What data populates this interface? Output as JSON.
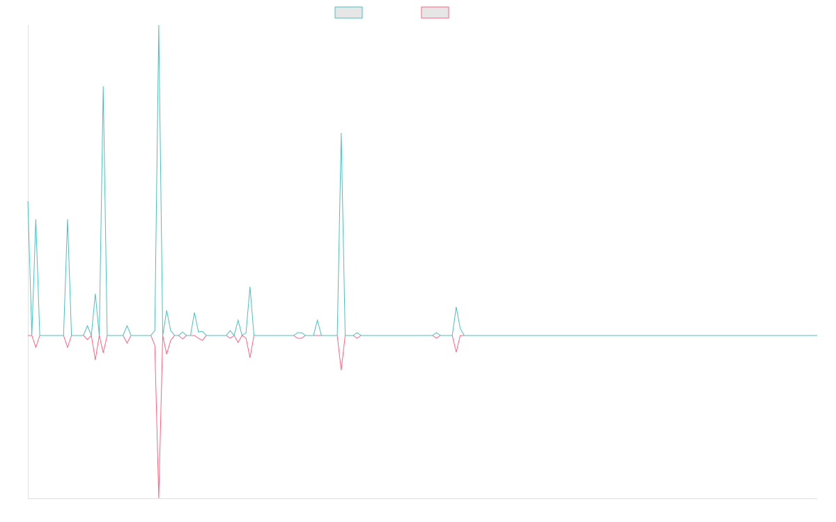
{
  "chart_data": {
    "type": "line",
    "categories": [
      null,
      null,
      null,
      null,
      null,
      null,
      null,
      null,
      null,
      null,
      null,
      null,
      null,
      null,
      null,
      null,
      null,
      null,
      null,
      null,
      null,
      null,
      null,
      null,
      null,
      null,
      null,
      null,
      null,
      null,
      null,
      null,
      null,
      null,
      null,
      null,
      null,
      null,
      null,
      null,
      null,
      null,
      null,
      null,
      null,
      null,
      null,
      null,
      null,
      null,
      null,
      null,
      null,
      null,
      null,
      null,
      null,
      null,
      null,
      null,
      null,
      null,
      null,
      null,
      null,
      null,
      null,
      null,
      null,
      null,
      null,
      null,
      null,
      null,
      null,
      null,
      null,
      null,
      null,
      null,
      null,
      null,
      null,
      null,
      null,
      null,
      null,
      null,
      null,
      null,
      null,
      null,
      null,
      null,
      null,
      null,
      null,
      null,
      null,
      null,
      null,
      null,
      null,
      null,
      null,
      null,
      null,
      null,
      null,
      null,
      null,
      null,
      null,
      null,
      null,
      null,
      null,
      null,
      null,
      null,
      null,
      null,
      null,
      null,
      null,
      null,
      null,
      null,
      null,
      null,
      null,
      null,
      null,
      null,
      null,
      null,
      null,
      null,
      null,
      null,
      null,
      null,
      null,
      null,
      null,
      null,
      null,
      null,
      null,
      null,
      null,
      null,
      null,
      null,
      null,
      null,
      null,
      null,
      null,
      null,
      null,
      null,
      null,
      null,
      null,
      null,
      null,
      null,
      null,
      null,
      null,
      null,
      null,
      null,
      null,
      null,
      null,
      null,
      null,
      null,
      null,
      null,
      null,
      null,
      null,
      null,
      null,
      null,
      null,
      null,
      null,
      null,
      null,
      null,
      null,
      null,
      null,
      null,
      null,
      null
    ],
    "series": [
      {
        "color": "#4bc0c0",
        "values": [
          193,
          0,
          167,
          0,
          0,
          0,
          0,
          0,
          0,
          0,
          167,
          0,
          0,
          0,
          0,
          14,
          0,
          60,
          0,
          358,
          0,
          0,
          0,
          0,
          0,
          14,
          0,
          0,
          0,
          0,
          0,
          0,
          7,
          446,
          0,
          36,
          7,
          0,
          0,
          5,
          0,
          0,
          33,
          5,
          6,
          0,
          0,
          0,
          0,
          0,
          0,
          7,
          0,
          22,
          0,
          4,
          70,
          0,
          0,
          0,
          0,
          0,
          0,
          0,
          0,
          0,
          0,
          0,
          4,
          4,
          0,
          0,
          0,
          22,
          0,
          0,
          0,
          0,
          0,
          291,
          0,
          0,
          0,
          4,
          0,
          0,
          0,
          0,
          0,
          0,
          0,
          0,
          0,
          0,
          0,
          0,
          0,
          0,
          0,
          0,
          0,
          0,
          0,
          4,
          0,
          0,
          0,
          0,
          41,
          10,
          0,
          0,
          0,
          0,
          0,
          0,
          0,
          0,
          0,
          0,
          0,
          0,
          0,
          0,
          0,
          0,
          0,
          0,
          0,
          0,
          0,
          0,
          0,
          0,
          0,
          0,
          0,
          0,
          0,
          0,
          0,
          0,
          0,
          0,
          0,
          0,
          0,
          0,
          0,
          0,
          0,
          0,
          0,
          0,
          0,
          0,
          0,
          0,
          0,
          0,
          0,
          0,
          0,
          0,
          0,
          0,
          0,
          0,
          0,
          0,
          0,
          0,
          0,
          0,
          0,
          0,
          0,
          0,
          0,
          0,
          0,
          0,
          0,
          0,
          0,
          0,
          0,
          0,
          0,
          0,
          0,
          0,
          0,
          0,
          0,
          0,
          0,
          0,
          0,
          0
        ]
      },
      {
        "color": "#ff6384",
        "values": [
          0,
          0,
          -17,
          0,
          0,
          0,
          0,
          0,
          0,
          0,
          -17,
          0,
          0,
          0,
          0,
          -6,
          0,
          -35,
          0,
          -25,
          0,
          0,
          0,
          0,
          0,
          -11,
          0,
          0,
          0,
          0,
          0,
          0,
          -14,
          -234,
          0,
          -27,
          -7,
          0,
          0,
          -5,
          0,
          0,
          0,
          -4,
          -7,
          0,
          0,
          0,
          0,
          0,
          0,
          -4,
          0,
          -10,
          0,
          -4,
          -32,
          0,
          0,
          0,
          0,
          0,
          0,
          0,
          0,
          0,
          0,
          0,
          -4,
          -4,
          0,
          0,
          0,
          0,
          0,
          0,
          0,
          0,
          0,
          -50,
          0,
          0,
          0,
          -4,
          0,
          0,
          0,
          0,
          0,
          0,
          0,
          0,
          0,
          0,
          0,
          0,
          0,
          0,
          0,
          0,
          0,
          0,
          0,
          -4,
          0,
          0,
          0,
          0,
          -24,
          0,
          0,
          0,
          0,
          0,
          0,
          0,
          0,
          0,
          0,
          0,
          0,
          0,
          0,
          0,
          0,
          0,
          0,
          0,
          0,
          0,
          0,
          0,
          0,
          0,
          0,
          0,
          0,
          0,
          0,
          0,
          0,
          0,
          0,
          0,
          0,
          0,
          0,
          0,
          0,
          0,
          0,
          0,
          0,
          0,
          0,
          0,
          0,
          0,
          0,
          0,
          0,
          0,
          0,
          0,
          0,
          0,
          0,
          0,
          0,
          0,
          0,
          0,
          0,
          0,
          0,
          0,
          0,
          0,
          0,
          0,
          0,
          0,
          0,
          0,
          0,
          0,
          0,
          0,
          0,
          0,
          0,
          0,
          0,
          0,
          0,
          0,
          0,
          0,
          0,
          0
        ]
      }
    ],
    "ylim": [
      -234,
      446
    ]
  }
}
